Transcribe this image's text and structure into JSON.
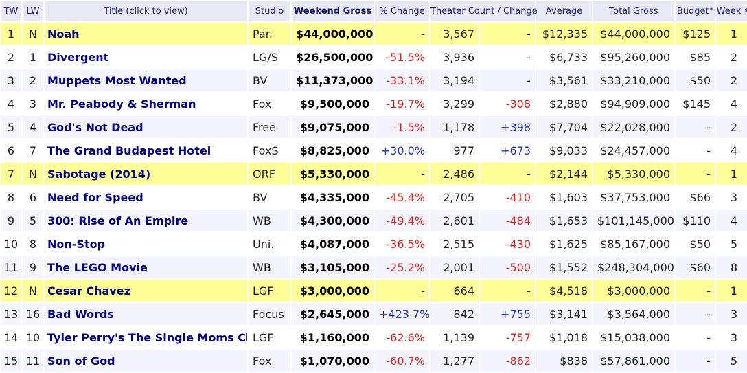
{
  "columns": {
    "tw": "TW",
    "lw": "LW",
    "title": "Title (click to view)",
    "studio": "Studio",
    "weekend": "Weekend Gross",
    "change": "% Change",
    "theater": "Theater Count / Change",
    "average": "Average",
    "total": "Total Gross",
    "budget": "Budget*",
    "week": "Week #"
  },
  "rows": [
    {
      "tw": "1",
      "lw": "N",
      "title": "Noah",
      "studio": "Par.",
      "weekend": "$44,000,000",
      "change": "-",
      "change_type": "none",
      "theaters": "3,567",
      "theater_change": "-",
      "tc_type": "none",
      "average": "$12,335",
      "total": "$44,000,000",
      "budget": "$125",
      "week": "1",
      "is_new": true
    },
    {
      "tw": "2",
      "lw": "1",
      "title": "Divergent",
      "studio": "LG/S",
      "weekend": "$26,500,000",
      "change": "-51.5%",
      "change_type": "neg",
      "theaters": "3,936",
      "theater_change": "-",
      "tc_type": "none",
      "average": "$6,733",
      "total": "$95,260,000",
      "budget": "$85",
      "week": "2",
      "is_new": false
    },
    {
      "tw": "3",
      "lw": "2",
      "title": "Muppets Most Wanted",
      "studio": "BV",
      "weekend": "$11,373,000",
      "change": "-33.1%",
      "change_type": "neg",
      "theaters": "3,194",
      "theater_change": "-",
      "tc_type": "none",
      "average": "$3,561",
      "total": "$33,210,000",
      "budget": "$50",
      "week": "2",
      "is_new": false
    },
    {
      "tw": "4",
      "lw": "3",
      "title": "Mr. Peabody & Sherman",
      "studio": "Fox",
      "weekend": "$9,500,000",
      "change": "-19.7%",
      "change_type": "neg",
      "theaters": "3,299",
      "theater_change": "-308",
      "tc_type": "neg",
      "average": "$2,880",
      "total": "$94,909,000",
      "budget": "$145",
      "week": "4",
      "is_new": false
    },
    {
      "tw": "5",
      "lw": "4",
      "title": "God's Not Dead",
      "studio": "Free",
      "weekend": "$9,075,000",
      "change": "-1.5%",
      "change_type": "neg",
      "theaters": "1,178",
      "theater_change": "+398",
      "tc_type": "pos",
      "average": "$7,704",
      "total": "$22,028,000",
      "budget": "-",
      "week": "2",
      "is_new": false
    },
    {
      "tw": "6",
      "lw": "7",
      "title": "The Grand Budapest Hotel",
      "studio": "FoxS",
      "weekend": "$8,825,000",
      "change": "+30.0%",
      "change_type": "pos",
      "theaters": "977",
      "theater_change": "+673",
      "tc_type": "pos",
      "average": "$9,033",
      "total": "$24,457,000",
      "budget": "-",
      "week": "4",
      "is_new": false
    },
    {
      "tw": "7",
      "lw": "N",
      "title": "Sabotage (2014)",
      "studio": "ORF",
      "weekend": "$5,330,000",
      "change": "-",
      "change_type": "none",
      "theaters": "2,486",
      "theater_change": "-",
      "tc_type": "none",
      "average": "$2,144",
      "total": "$5,330,000",
      "budget": "-",
      "week": "1",
      "is_new": true
    },
    {
      "tw": "8",
      "lw": "6",
      "title": "Need for Speed",
      "studio": "BV",
      "weekend": "$4,335,000",
      "change": "-45.4%",
      "change_type": "neg",
      "theaters": "2,705",
      "theater_change": "-410",
      "tc_type": "neg",
      "average": "$1,603",
      "total": "$37,753,000",
      "budget": "$66",
      "week": "3",
      "is_new": false
    },
    {
      "tw": "9",
      "lw": "5",
      "title": "300: Rise of An Empire",
      "studio": "WB",
      "weekend": "$4,300,000",
      "change": "-49.4%",
      "change_type": "neg",
      "theaters": "2,601",
      "theater_change": "-484",
      "tc_type": "neg",
      "average": "$1,653",
      "total": "$101,145,000",
      "budget": "$110",
      "week": "4",
      "is_new": false
    },
    {
      "tw": "10",
      "lw": "8",
      "title": "Non-Stop",
      "studio": "Uni.",
      "weekend": "$4,087,000",
      "change": "-36.5%",
      "change_type": "neg",
      "theaters": "2,515",
      "theater_change": "-430",
      "tc_type": "neg",
      "average": "$1,625",
      "total": "$85,167,000",
      "budget": "$50",
      "week": "5",
      "is_new": false
    },
    {
      "tw": "11",
      "lw": "9",
      "title": "The LEGO Movie",
      "studio": "WB",
      "weekend": "$3,105,000",
      "change": "-25.2%",
      "change_type": "neg",
      "theaters": "2,001",
      "theater_change": "-500",
      "tc_type": "neg",
      "average": "$1,552",
      "total": "$248,304,000",
      "budget": "$60",
      "week": "8",
      "is_new": false
    },
    {
      "tw": "12",
      "lw": "N",
      "title": "Cesar Chavez",
      "studio": "LGF",
      "weekend": "$3,000,000",
      "change": "-",
      "change_type": "none",
      "theaters": "664",
      "theater_change": "-",
      "tc_type": "none",
      "average": "$4,518",
      "total": "$3,000,000",
      "budget": "-",
      "week": "1",
      "is_new": true
    },
    {
      "tw": "13",
      "lw": "16",
      "title": "Bad Words",
      "studio": "Focus",
      "weekend": "$2,645,000",
      "change": "+423.7%",
      "change_type": "pos",
      "theaters": "842",
      "theater_change": "+755",
      "tc_type": "pos",
      "average": "$3,141",
      "total": "$3,564,000",
      "budget": "-",
      "week": "3",
      "is_new": false
    },
    {
      "tw": "14",
      "lw": "10",
      "title": "Tyler Perry's The Single Moms Club",
      "studio": "LGF",
      "weekend": "$1,160,000",
      "change": "-62.6%",
      "change_type": "neg",
      "theaters": "1,139",
      "theater_change": "-757",
      "tc_type": "neg",
      "average": "$1,018",
      "total": "$15,038,000",
      "budget": "-",
      "week": "3",
      "is_new": false
    },
    {
      "tw": "15",
      "lw": "11",
      "title": "Son of God",
      "studio": "Fox",
      "weekend": "$1,070,000",
      "change": "-60.7%",
      "change_type": "neg",
      "theaters": "1,277",
      "theater_change": "-862",
      "tc_type": "neg",
      "average": "$838",
      "total": "$57,861,000",
      "budget": "-",
      "week": "5",
      "is_new": false
    }
  ]
}
